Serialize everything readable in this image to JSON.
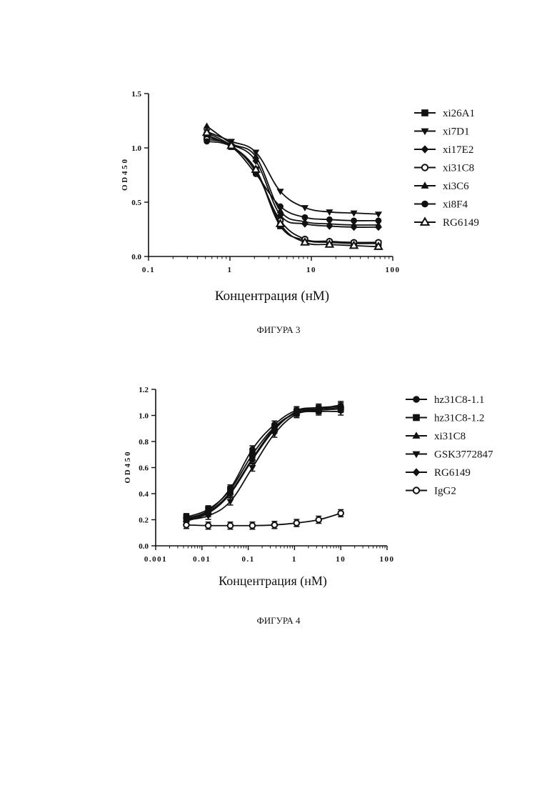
{
  "chart_data": [
    {
      "type": "line",
      "figure_label": "ФИГУРА 3",
      "xlabel": "Концентрация (нМ)",
      "ylabel": "O D 4 5 0",
      "xscale": "log",
      "xlim": [
        0.1,
        100
      ],
      "ylim": [
        0,
        1.5
      ],
      "xticks": [
        "0.1",
        "1",
        "10",
        "100"
      ],
      "yticks": [
        "0.0",
        "0.5",
        "1.0",
        "1.5"
      ],
      "legend_position": "right",
      "x": [
        0.52,
        1.04,
        2.08,
        4.16,
        8.33,
        16.7,
        33.3,
        66.7
      ],
      "series": [
        {
          "name": "xi26A1",
          "marker": "square",
          "values": [
            1.12,
            1.01,
            0.8,
            0.28,
            0.15,
            0.13,
            0.12,
            0.12
          ]
        },
        {
          "name": "xi7D1",
          "marker": "triangle-down",
          "values": [
            1.15,
            1.06,
            0.96,
            0.6,
            0.45,
            0.41,
            0.4,
            0.39
          ]
        },
        {
          "name": "xi17E2",
          "marker": "diamond",
          "values": [
            1.1,
            1.03,
            0.88,
            0.38,
            0.3,
            0.28,
            0.27,
            0.27
          ]
        },
        {
          "name": "xi31C8",
          "marker": "open-circle",
          "values": [
            1.08,
            1.02,
            0.78,
            0.33,
            0.16,
            0.14,
            0.13,
            0.13
          ]
        },
        {
          "name": "xi3C6",
          "marker": "triangle-up",
          "values": [
            1.2,
            1.04,
            0.92,
            0.42,
            0.32,
            0.3,
            0.29,
            0.29
          ]
        },
        {
          "name": "xi8F4",
          "marker": "circle",
          "values": [
            1.06,
            1.01,
            0.76,
            0.46,
            0.36,
            0.34,
            0.33,
            0.33
          ]
        },
        {
          "name": "RG6149",
          "marker": "open-triangle",
          "values": [
            1.14,
            1.02,
            0.8,
            0.3,
            0.13,
            0.11,
            0.1,
            0.09
          ]
        }
      ]
    },
    {
      "type": "line",
      "figure_label": "ФИГУРА 4",
      "xlabel": "Концентрация (нМ)",
      "ylabel": "O D 4 5 0",
      "xscale": "log",
      "xlim": [
        0.001,
        100
      ],
      "ylim": [
        0,
        1.2
      ],
      "xticks": [
        "0.001",
        "0.01",
        "0.1",
        "1",
        "10",
        "100"
      ],
      "yticks": [
        "0.0",
        "0.2",
        "0.4",
        "0.6",
        "0.8",
        "1.0",
        "1.2"
      ],
      "legend_position": "right",
      "x": [
        0.0046,
        0.0137,
        0.041,
        0.123,
        0.37,
        1.11,
        3.33,
        10
      ],
      "series": [
        {
          "name": "hz31C8-1.1",
          "marker": "circle",
          "values": [
            0.21,
            0.27,
            0.44,
            0.74,
            0.93,
            1.04,
            1.06,
            1.07
          ]
        },
        {
          "name": "hz31C8-1.2",
          "marker": "square",
          "values": [
            0.22,
            0.28,
            0.43,
            0.7,
            0.91,
            1.02,
            1.04,
            1.05
          ]
        },
        {
          "name": "xi31C8",
          "marker": "triangle-up",
          "values": [
            0.2,
            0.26,
            0.41,
            0.67,
            0.9,
            1.02,
            1.05,
            1.08
          ]
        },
        {
          "name": "GSK3772847",
          "marker": "triangle-down",
          "values": [
            0.2,
            0.23,
            0.34,
            0.6,
            0.86,
            1.01,
            1.03,
            1.03
          ]
        },
        {
          "name": "RG6149",
          "marker": "diamond",
          "values": [
            0.19,
            0.25,
            0.4,
            0.66,
            0.89,
            1.03,
            1.05,
            1.06
          ]
        },
        {
          "name": "IgG2",
          "marker": "open-circle",
          "values": [
            0.16,
            0.155,
            0.155,
            0.155,
            0.16,
            0.175,
            0.2,
            0.25
          ]
        }
      ]
    }
  ]
}
